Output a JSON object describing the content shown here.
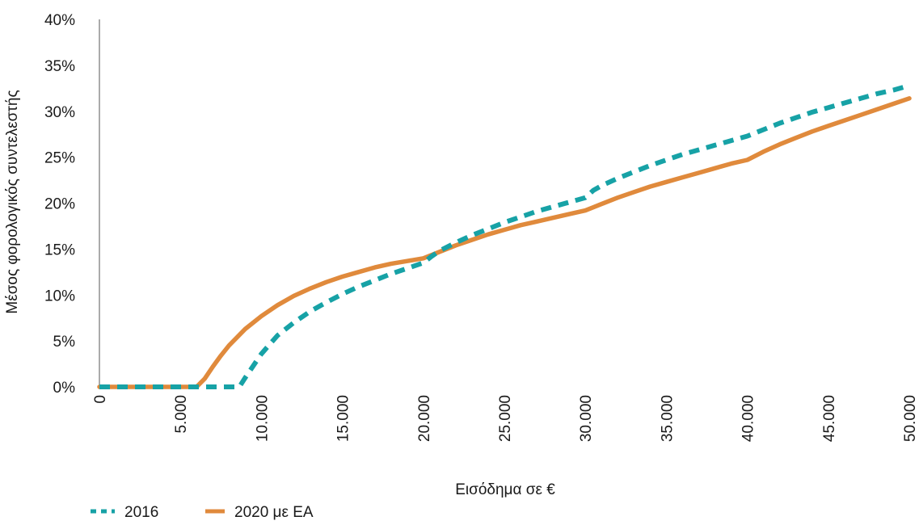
{
  "chart_data": {
    "type": "line",
    "title": "",
    "xlabel": "Εισόδημα σε €",
    "ylabel": "Μέσος φορολογικός συντελεστής",
    "xlim": [
      0,
      50000
    ],
    "ylim": [
      0,
      40
    ],
    "x_ticks": [
      0,
      5000,
      10000,
      15000,
      20000,
      25000,
      30000,
      35000,
      40000,
      45000,
      50000
    ],
    "x_tick_labels": [
      "0",
      "5.000",
      "10.000",
      "15.000",
      "20.000",
      "25.000",
      "30.000",
      "35.000",
      "40.000",
      "45.000",
      "50.000"
    ],
    "y_ticks": [
      0,
      5,
      10,
      15,
      20,
      25,
      30,
      35,
      40
    ],
    "y_tick_labels": [
      "0%",
      "5%",
      "10%",
      "15%",
      "20%",
      "25%",
      "30%",
      "35%",
      "40%"
    ],
    "grid": false,
    "legend_position": "bottom-left",
    "series": [
      {
        "name": "2016",
        "color": "#17a2a6",
        "style": "dashed",
        "x": [
          0,
          8636,
          9000,
          10000,
          11000,
          12000,
          13000,
          14000,
          15000,
          16000,
          17000,
          18000,
          19000,
          20000,
          20500,
          21000,
          22000,
          23000,
          24000,
          25000,
          26000,
          27000,
          28000,
          29000,
          30000,
          30500,
          31000,
          32000,
          33000,
          34000,
          35000,
          36000,
          37000,
          38000,
          39000,
          40000,
          41000,
          42000,
          43000,
          44000,
          45000,
          46000,
          47000,
          48000,
          49000,
          50000
        ],
        "y": [
          0,
          0,
          1.0,
          3.6,
          5.6,
          7.0,
          8.2,
          9.2,
          10.1,
          10.9,
          11.6,
          12.3,
          12.9,
          13.5,
          14.2,
          14.8,
          15.7,
          16.5,
          17.2,
          17.9,
          18.5,
          19.1,
          19.6,
          20.1,
          20.6,
          21.4,
          21.9,
          22.7,
          23.4,
          24.1,
          24.7,
          25.3,
          25.8,
          26.3,
          26.8,
          27.3,
          28.0,
          28.7,
          29.3,
          29.9,
          30.4,
          30.9,
          31.4,
          31.9,
          32.3,
          32.8
        ]
      },
      {
        "name": "2020 με ΕΑ",
        "color": "#e08a3c",
        "style": "solid",
        "x": [
          0,
          6000,
          6500,
          7000,
          7500,
          8000,
          9000,
          10000,
          11000,
          12000,
          13000,
          14000,
          15000,
          16000,
          17000,
          18000,
          19000,
          20000,
          21000,
          22000,
          23000,
          24000,
          25000,
          26000,
          27000,
          28000,
          29000,
          30000,
          31000,
          32000,
          33000,
          34000,
          35000,
          36000,
          37000,
          38000,
          39000,
          40000,
          41000,
          42000,
          43000,
          44000,
          45000,
          46000,
          47000,
          48000,
          49000,
          50000
        ],
        "y": [
          0,
          0,
          0.9,
          2.2,
          3.4,
          4.5,
          6.3,
          7.7,
          8.9,
          9.9,
          10.7,
          11.4,
          12.0,
          12.5,
          13.0,
          13.4,
          13.7,
          14.0,
          14.7,
          15.4,
          16.0,
          16.6,
          17.1,
          17.6,
          18.0,
          18.4,
          18.8,
          19.2,
          19.9,
          20.6,
          21.2,
          21.8,
          22.3,
          22.8,
          23.3,
          23.8,
          24.3,
          24.7,
          25.6,
          26.4,
          27.1,
          27.8,
          28.4,
          29.0,
          29.6,
          30.2,
          30.8,
          31.4
        ]
      }
    ]
  }
}
